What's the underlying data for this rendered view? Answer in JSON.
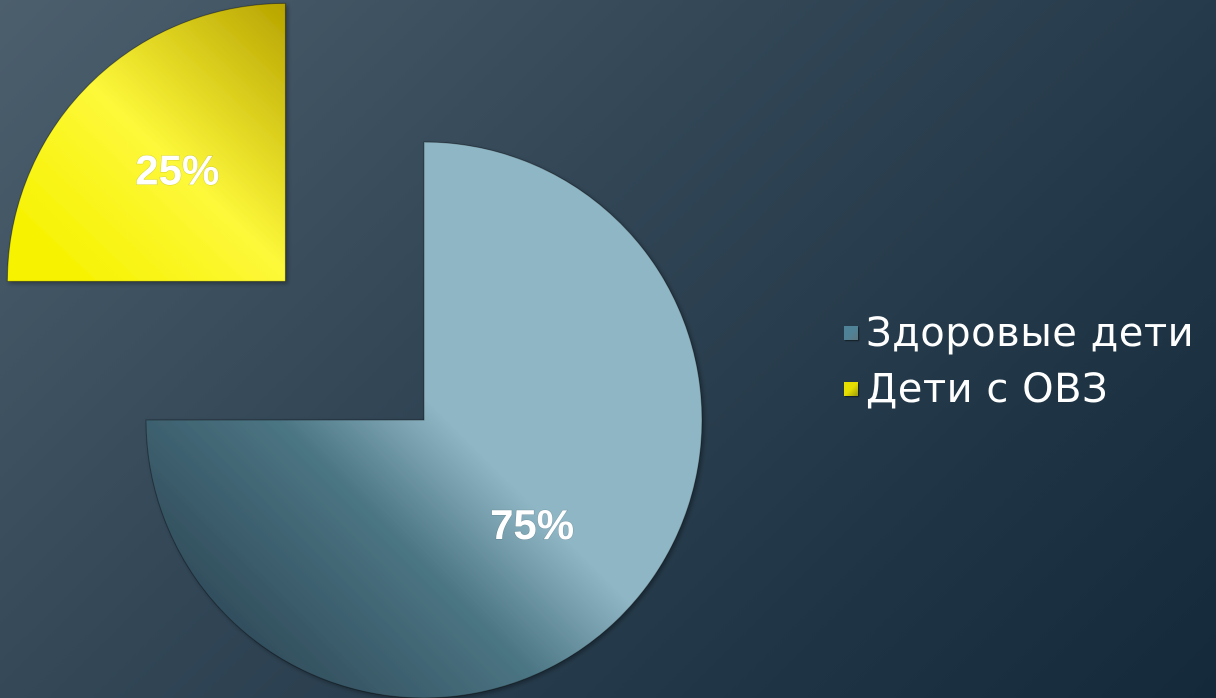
{
  "chart_data": {
    "type": "pie",
    "categories": [
      "Здоровые дети",
      "Дети с ОВЗ"
    ],
    "values": [
      75,
      25
    ],
    "data_labels": [
      "75%",
      "25%"
    ],
    "colors": [
      "#8fb6c4",
      "#f2ee10"
    ],
    "legend_position": "right",
    "exploded": true
  }
}
